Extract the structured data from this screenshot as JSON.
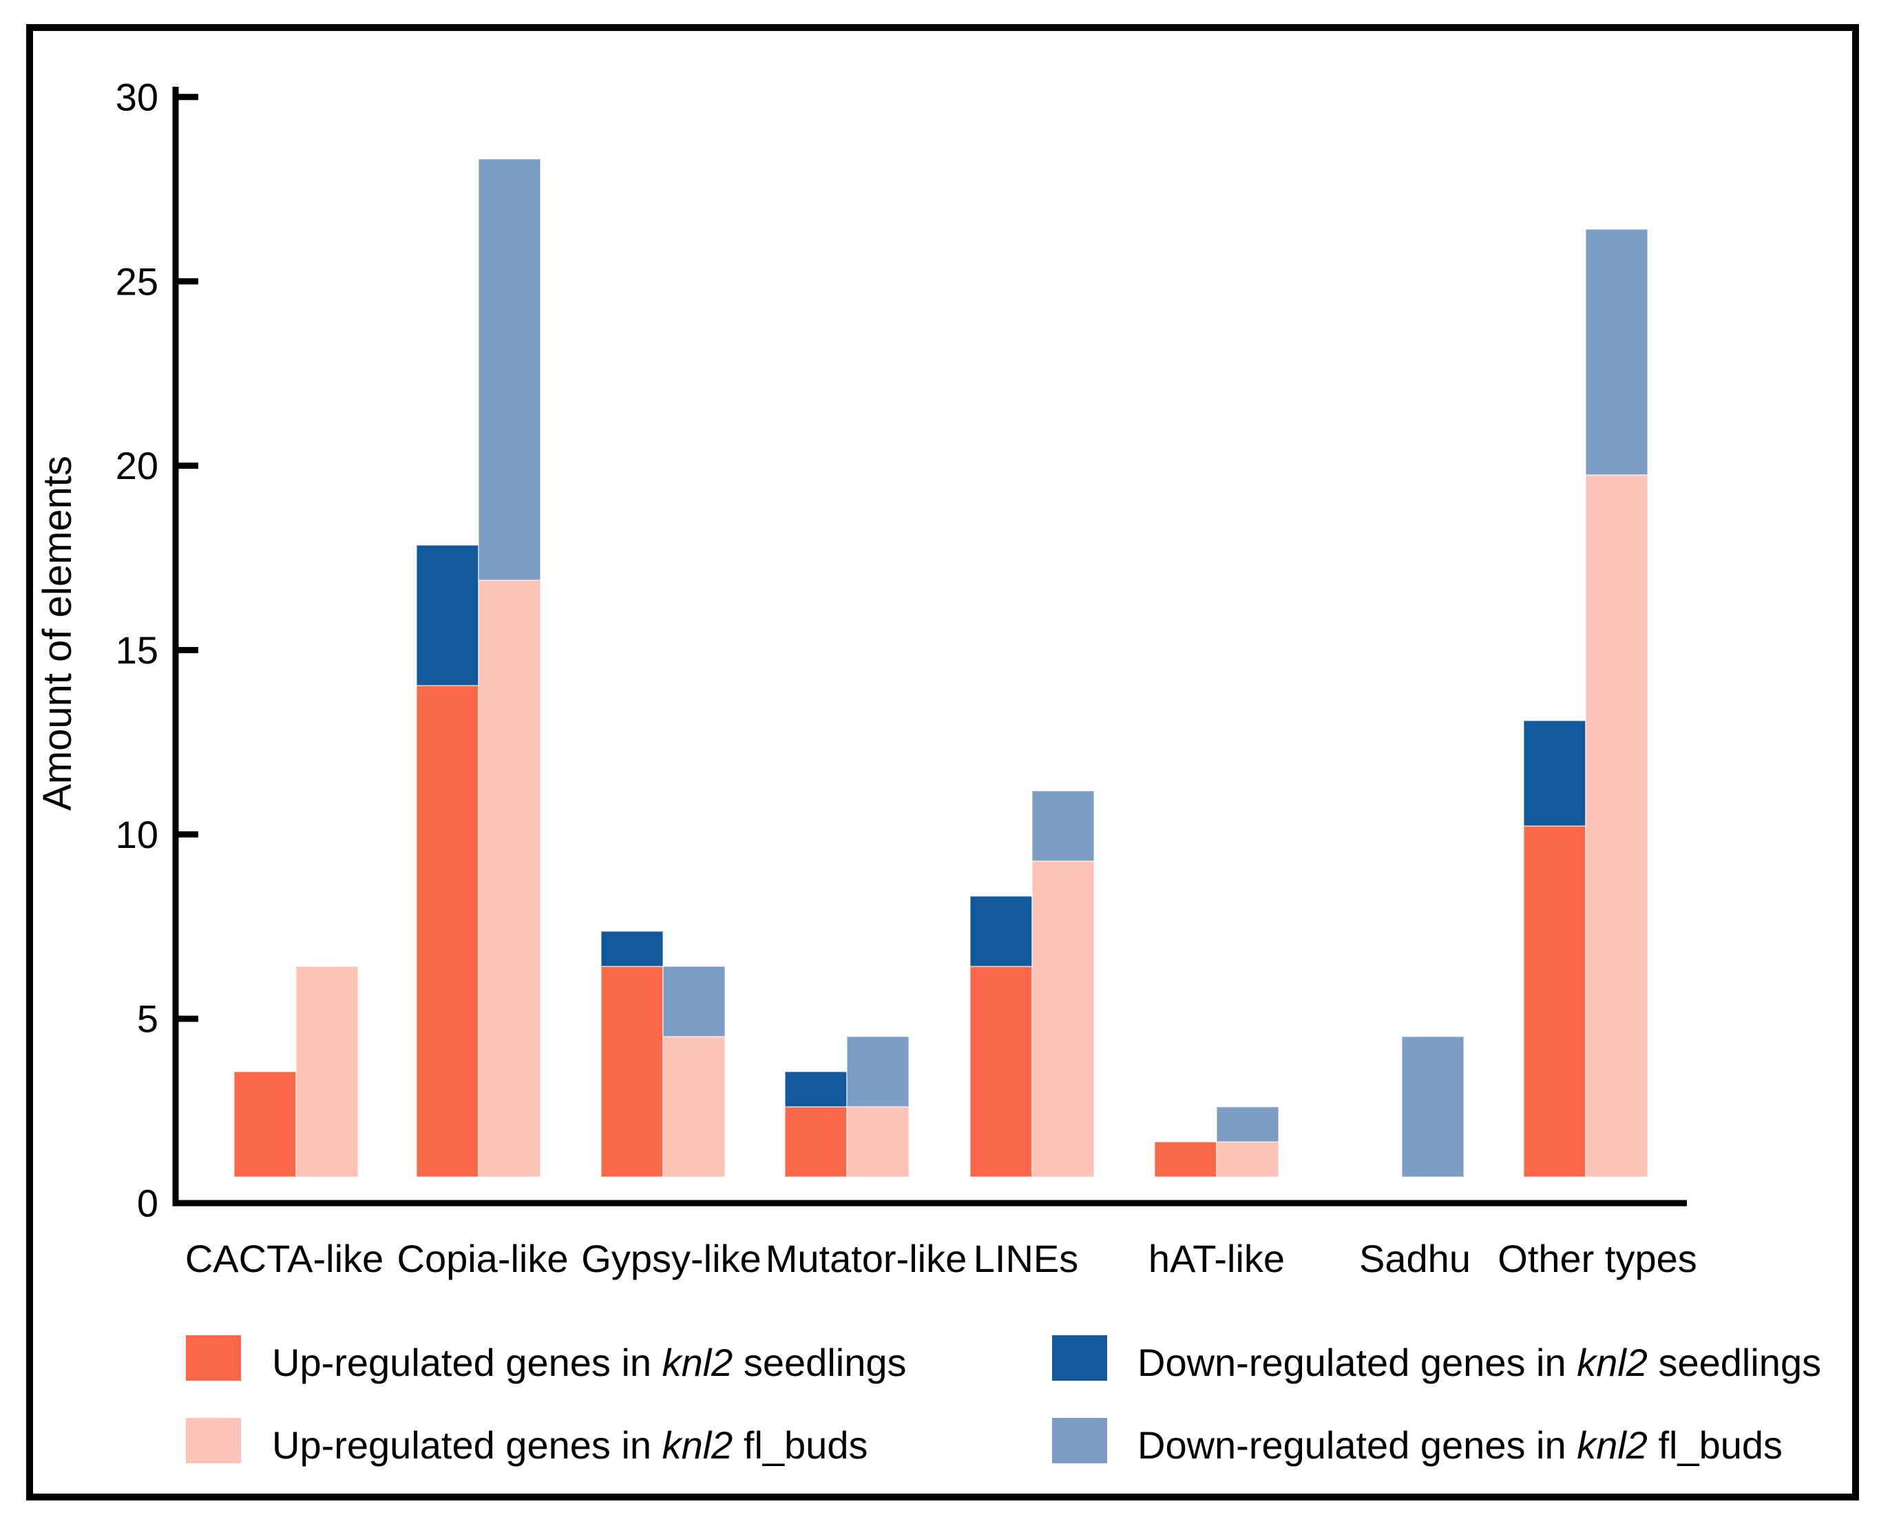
{
  "figure": {
    "background": "#ffffff",
    "border_color": "#000000"
  },
  "chart_data": {
    "type": "bar",
    "stacked": true,
    "title": "",
    "xlabel": "",
    "ylabel": "Amount of elements",
    "ylim": [
      0,
      30
    ],
    "yticks": [
      0,
      5,
      10,
      15,
      20,
      25,
      30
    ],
    "grid": false,
    "legend_position": "bottom",
    "italic_token": "knl2",
    "categories": [
      "CACTA-like",
      "Copia-like",
      "Gypsy-like",
      "Mutator-like",
      "LINEs",
      "hAT-like",
      "Sadhu",
      "Other types"
    ],
    "series": [
      {
        "name": "Up-regulated genes in knl2 seedlings",
        "color": "#FA6849",
        "stack": "seedlings",
        "values": [
          3,
          14,
          6,
          2,
          6,
          1,
          0,
          10
        ]
      },
      {
        "name": "Down-regulated genes in knl2 seedlings",
        "color": "#11589D",
        "stack": "seedlings",
        "values": [
          0,
          4,
          1,
          1,
          2,
          0,
          0,
          3
        ]
      },
      {
        "name": "Up-regulated genes in knl2 fl_buds",
        "color": "#FCC4B9",
        "stack": "fl_buds",
        "values": [
          6,
          17,
          4,
          2,
          9,
          1,
          0,
          20
        ]
      },
      {
        "name": "Down-regulated genes in knl2 fl_buds",
        "color": "#7D9DC6",
        "stack": "fl_buds",
        "values": [
          0,
          12,
          2,
          2,
          2,
          1,
          4,
          7
        ]
      }
    ]
  }
}
